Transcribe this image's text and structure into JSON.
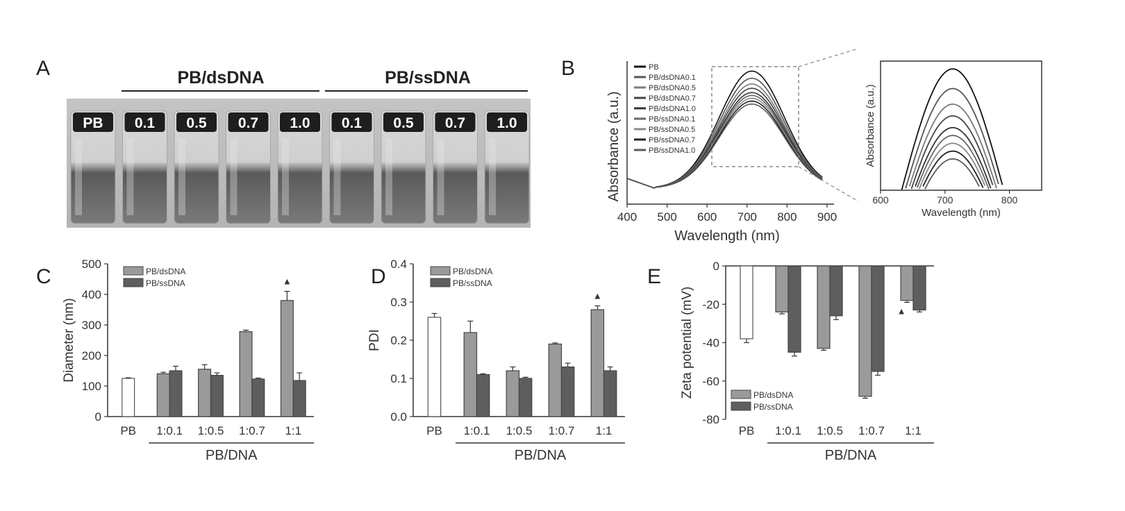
{
  "panels": {
    "a": {
      "letter": "A",
      "groups": [
        "PB/dsDNA",
        "PB/ssDNA"
      ],
      "vials": [
        "PB",
        "0.1",
        "0.5",
        "0.7",
        "1.0",
        "0.1",
        "0.5",
        "0.7",
        "1.0"
      ]
    },
    "b": {
      "letter": "B"
    },
    "c": {
      "letter": "C"
    },
    "d": {
      "letter": "D"
    },
    "e": {
      "letter": "E"
    }
  },
  "chart_data": [
    {
      "panel": "B",
      "type": "line",
      "xlabel": "Wavelength (nm)",
      "ylabel": "Absorbance (a.u.)",
      "xlim": [
        400,
        900
      ],
      "xticks": [
        400,
        500,
        600,
        700,
        800,
        900
      ],
      "legend": [
        "PB",
        "PB/dsDNA0.1",
        "PB/dsDNA0.5",
        "PB/dsDNA0.7",
        "PB/dsDNA1.0",
        "PB/ssDNA0.1",
        "PB/ssDNA0.5",
        "PB/ssDNA0.7",
        "PB/ssDNA1.0"
      ],
      "legend_position": "top-left",
      "series": [
        {
          "name": "PB",
          "peak": 712,
          "peak_value": 0.93
        },
        {
          "name": "PB/dsDNA0.1",
          "peak": 712,
          "peak_value": 0.88
        },
        {
          "name": "PB/dsDNA0.5",
          "peak": 712,
          "peak_value": 0.84
        },
        {
          "name": "PB/dsDNA0.7",
          "peak": 712,
          "peak_value": 0.81
        },
        {
          "name": "PB/dsDNA1.0",
          "peak": 712,
          "peak_value": 0.78
        },
        {
          "name": "PB/ssDNA0.1",
          "peak": 712,
          "peak_value": 0.76
        },
        {
          "name": "PB/ssDNA0.5",
          "peak": 712,
          "peak_value": 0.74
        },
        {
          "name": "PB/ssDNA0.7",
          "peak": 712,
          "peak_value": 0.72
        },
        {
          "name": "PB/ssDNA1.0",
          "peak": 712,
          "peak_value": 0.7
        }
      ],
      "inset": {
        "xlabel": "Wavelength (nm)",
        "ylabel": "Absorbance (a.u.)",
        "xlim": [
          600,
          850
        ],
        "xticks": [
          600,
          700,
          800
        ]
      }
    },
    {
      "panel": "C",
      "type": "bar",
      "categories": [
        "PB",
        "1:0.1",
        "1:0.5",
        "1:0.7",
        "1:1"
      ],
      "xlabel": "PB/DNA",
      "ylabel": "Diameter (nm)",
      "ylim": [
        0,
        500
      ],
      "yticks": [
        0,
        100,
        200,
        300,
        400,
        500
      ],
      "legend_position": "top-left",
      "control": {
        "category": "PB",
        "value": 125,
        "error": 2
      },
      "series": [
        {
          "name": "PB/dsDNA",
          "values": [
            null,
            140,
            155,
            278,
            380
          ],
          "errors": [
            null,
            5,
            15,
            5,
            30
          ]
        },
        {
          "name": "PB/ssDNA",
          "values": [
            null,
            150,
            135,
            123,
            118
          ],
          "errors": [
            null,
            15,
            8,
            3,
            25
          ]
        }
      ],
      "marker": {
        "category": "1:1",
        "symbol": "▲"
      }
    },
    {
      "panel": "D",
      "type": "bar",
      "categories": [
        "PB",
        "1:0.1",
        "1:0.5",
        "1:0.7",
        "1:1"
      ],
      "xlabel": "PB/DNA",
      "ylabel": "PDI",
      "ylim": [
        0,
        0.4
      ],
      "yticks": [
        "0.0",
        "0.1",
        "0.2",
        "0.3",
        "0.4"
      ],
      "legend_position": "top-left",
      "control": {
        "category": "PB",
        "value": 0.26,
        "error": 0.01
      },
      "series": [
        {
          "name": "PB/dsDNA",
          "values": [
            null,
            0.22,
            0.12,
            0.19,
            0.28
          ],
          "errors": [
            null,
            0.03,
            0.01,
            0.003,
            0.01
          ]
        },
        {
          "name": "PB/ssDNA",
          "values": [
            null,
            0.11,
            0.1,
            0.13,
            0.12
          ],
          "errors": [
            null,
            0.002,
            0.003,
            0.01,
            0.01
          ]
        }
      ],
      "marker": {
        "category": "1:1",
        "symbol": "▲"
      }
    },
    {
      "panel": "E",
      "type": "bar",
      "categories": [
        "PB",
        "1:0.1",
        "1:0.5",
        "1:0.7",
        "1:1"
      ],
      "xlabel": "PB/DNA",
      "ylabel": "Zeta potential (mV)",
      "ylim": [
        -80,
        0
      ],
      "yticks": [
        0,
        -20,
        -40,
        -60,
        -80
      ],
      "legend_position": "bottom-left",
      "control": {
        "category": "PB",
        "value": -38,
        "error": 2
      },
      "series": [
        {
          "name": "PB/dsDNA",
          "values": [
            null,
            -24,
            -43,
            -68,
            -18
          ],
          "errors": [
            null,
            1,
            1,
            1,
            1
          ]
        },
        {
          "name": "PB/ssDNA",
          "values": [
            null,
            -45,
            -26,
            -55,
            -23
          ],
          "errors": [
            null,
            2,
            2,
            2,
            1
          ]
        }
      ],
      "marker": {
        "category": "1:1",
        "symbol": "▲"
      }
    }
  ]
}
